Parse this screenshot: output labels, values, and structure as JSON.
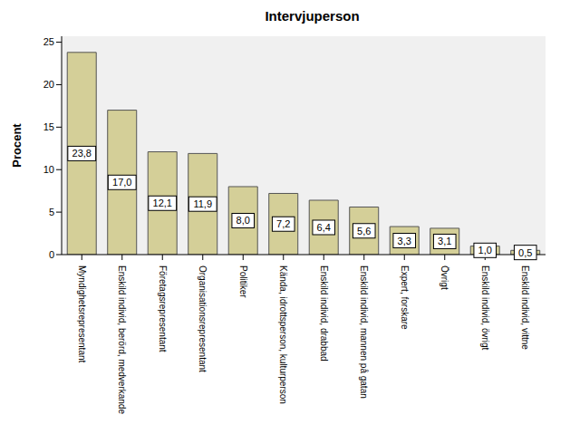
{
  "chart_data": {
    "type": "bar",
    "title": "Intervjuperson",
    "y_label": "Procent",
    "categories": [
      "Myndighetsrepresentant",
      "Enskild individ, berörd, medverkande",
      "Företagsrepresentant",
      "Organisationsrepresentant",
      "Politiker",
      "Kända, idrottsperson, kulturperson",
      "Enskild individ, drabbad",
      "Enskild individ, mannen på gatan",
      "Expert, forskare",
      "Övrigt",
      "Enskild individ, övrigt",
      "Enskild individ, vittne"
    ],
    "values": [
      23.8,
      17.0,
      12.1,
      11.9,
      8.0,
      7.2,
      6.4,
      5.6,
      3.3,
      3.1,
      1.0,
      0.5
    ],
    "value_labels": [
      "23,8",
      "17,0",
      "12,1",
      "11,9",
      "8,0",
      "7,2",
      "6,4",
      "5,6",
      "3,3",
      "3,1",
      "1,0",
      "0,5"
    ],
    "color": "#d4cf98",
    "ylim": [
      0,
      25.7
    ],
    "yticks": [
      0,
      5,
      10,
      15,
      20,
      25
    ],
    "grid": false,
    "data_labels": true
  }
}
